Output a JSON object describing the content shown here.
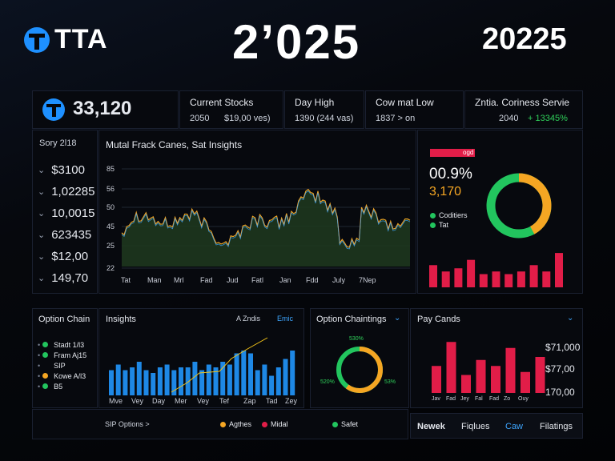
{
  "header": {
    "logo_text": "TTA",
    "year_center": "2’025",
    "year_right": "20225"
  },
  "kpis": {
    "main_value": "33,120",
    "current_stocks": {
      "label": "Current Stocks",
      "left": "2050",
      "right": "$19,00 ves)"
    },
    "day_high": {
      "label": "Day High",
      "value": "1390 (244 vas)"
    },
    "cow_low": {
      "label": "Cow mat Low",
      "value": "1837 > on"
    },
    "services": {
      "label": "Zntia. Coriness Servie",
      "value": "2040",
      "change": "+ 13345%"
    }
  },
  "sidebar": {
    "title": "Sory 2l18",
    "items": [
      "$3100",
      "1,02285",
      "10,0015",
      "623435",
      "$12,00",
      "149,70"
    ]
  },
  "main_chart": {
    "title": "Mutal Frack Canes, Sat Insights",
    "yticks": [
      "85",
      "56",
      "50",
      "45",
      "25",
      "22"
    ],
    "xticks": [
      "Tat",
      "Man",
      "Mrl",
      "Fad",
      "Jud",
      "Fatl",
      "Jan",
      "Fdd",
      "July",
      "7Nep"
    ]
  },
  "donut_panel": {
    "bar_label": "ogd",
    "pct": "00.9%",
    "value": "3,170",
    "legend": [
      "Coditiers",
      "Tat"
    ],
    "donut_pct": 0.42,
    "colors": {
      "orange": "#f5a623",
      "green": "#22c55e",
      "red": "#e11d48"
    },
    "bars": [
      0.42,
      0.3,
      0.36,
      0.52,
      0.25,
      0.3,
      0.25,
      0.3,
      0.42,
      0.3,
      0.65
    ]
  },
  "option_chain": {
    "title": "Option Chain",
    "items": [
      {
        "label": "Stadt 1/l3",
        "color": "#22c55e"
      },
      {
        "label": "Fram Aj15",
        "color": "#22c55e"
      },
      {
        "label": "SIP",
        "color": ""
      },
      {
        "label": "Kowe A/l3",
        "color": "#f5a623"
      },
      {
        "label": "B5",
        "color": "#22c55e"
      }
    ]
  },
  "insights": {
    "title": "Insights",
    "badge": "A Zndis",
    "link": "Emic",
    "xticks": [
      "Mve",
      "Vey",
      "Day",
      "Mer",
      "Vey",
      "Tef",
      "Zap",
      "Tad",
      "Zey"
    ],
    "bars": [
      0.45,
      0.55,
      0.45,
      0.5,
      0.6,
      0.45,
      0.4,
      0.5,
      0.55,
      0.45,
      0.5,
      0.5,
      0.6,
      0.45,
      0.55,
      0.5,
      0.6,
      0.55,
      0.75,
      0.8,
      0.75,
      0.45,
      0.55,
      0.35,
      0.5,
      0.65,
      0.8
    ]
  },
  "option_chainings": {
    "title": "Option Chaintings",
    "top_label": "530%",
    "left_label": "520%",
    "right_label": "53%",
    "donut_pct": 0.6
  },
  "pay_cards": {
    "title": "Pay Cands",
    "yticks": [
      "$71,000",
      "$77,00",
      "170,00"
    ],
    "xticks": [
      "Jav",
      "Fad",
      "Jey",
      "Fal",
      "Fad",
      "Zo",
      "Ouy"
    ],
    "bars": [
      0.45,
      0.85,
      0.3,
      0.55,
      0.45,
      0.75,
      0.35,
      0.6
    ]
  },
  "footer": {
    "sip_options": "SIP Options >",
    "legend": [
      {
        "label": "Agthes",
        "color": "#f5a623"
      },
      {
        "label": "Midal",
        "color": "#e11d48"
      },
      {
        "label": "Safet",
        "color": "#22c55e"
      }
    ],
    "tabs": [
      "Newek",
      "Fiqlues",
      "Caw",
      "Filatings"
    ]
  }
}
